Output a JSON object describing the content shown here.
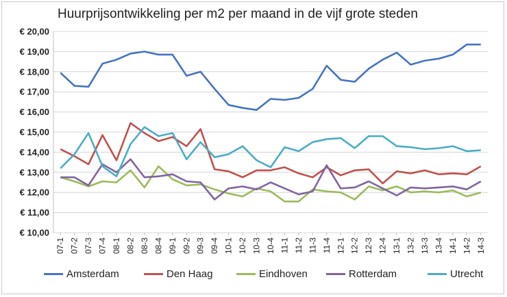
{
  "chart_data": {
    "type": "line",
    "title": "Huurprijsontwikkeling per m2 per maand in de vijf grote steden",
    "xlabel": "",
    "ylabel": "",
    "ylim": [
      10,
      20
    ],
    "yticks": [
      "€ 10,00",
      "€ 11,00",
      "€ 12,00",
      "€ 13,00",
      "€ 14,00",
      "€ 15,00",
      "€ 16,00",
      "€ 17,00",
      "€ 18,00",
      "€ 19,00",
      "€ 20,00"
    ],
    "grid": true,
    "legend_position": "bottom",
    "categories": [
      "07-1",
      "07-2",
      "07-3",
      "07-4",
      "08-1",
      "08-2",
      "08-3",
      "08-4",
      "09-1",
      "09-2",
      "09-3",
      "09-4",
      "10-1",
      "10-2",
      "10-3",
      "10-4",
      "11-1",
      "11-2",
      "11-3",
      "11-4",
      "12-1",
      "12-2",
      "12-3",
      "12-4",
      "13-1",
      "13-2",
      "13-3",
      "13-4",
      "14-1",
      "14-2",
      "14-3"
    ],
    "series": [
      {
        "name": "Amsterdam",
        "color": "#4472c4",
        "values": [
          17.95,
          17.3,
          17.25,
          18.4,
          18.6,
          18.9,
          19.0,
          18.85,
          18.85,
          17.8,
          18.0,
          17.15,
          16.35,
          16.2,
          16.1,
          16.65,
          16.6,
          16.7,
          17.15,
          18.3,
          17.6,
          17.5,
          18.15,
          18.6,
          18.95,
          18.35,
          18.55,
          18.65,
          18.85,
          19.35,
          19.35
        ]
      },
      {
        "name": "Den Haag",
        "color": "#c0504d",
        "values": [
          14.15,
          13.8,
          13.4,
          14.85,
          13.6,
          15.45,
          14.95,
          14.55,
          14.75,
          14.3,
          15.15,
          13.15,
          13.05,
          12.75,
          13.1,
          13.1,
          13.25,
          12.95,
          12.75,
          13.25,
          12.85,
          13.1,
          13.15,
          12.45,
          13.05,
          12.95,
          13.1,
          12.9,
          12.95,
          12.9,
          13.3
        ]
      },
      {
        "name": "Eindhoven",
        "color": "#9bbb59",
        "values": [
          12.75,
          12.55,
          12.3,
          12.55,
          12.5,
          13.1,
          12.25,
          13.3,
          12.65,
          12.35,
          12.4,
          12.15,
          11.95,
          11.8,
          12.2,
          12.05,
          11.55,
          11.55,
          12.15,
          12.05,
          12.0,
          11.65,
          12.3,
          12.1,
          12.3,
          12.0,
          12.05,
          12.0,
          12.1,
          11.8,
          12.0
        ]
      },
      {
        "name": "Rotterdam",
        "color": "#8064a2",
        "values": [
          12.75,
          12.75,
          12.35,
          13.4,
          13.0,
          13.65,
          12.75,
          12.8,
          12.9,
          12.55,
          12.5,
          11.65,
          12.2,
          12.3,
          12.15,
          12.5,
          12.2,
          11.9,
          12.05,
          13.35,
          12.2,
          12.25,
          12.55,
          12.2,
          11.85,
          12.25,
          12.2,
          12.25,
          12.3,
          12.15,
          12.55
        ]
      },
      {
        "name": "Utrecht",
        "color": "#4bacc6",
        "values": [
          13.2,
          13.9,
          14.95,
          13.3,
          12.8,
          14.4,
          15.25,
          14.8,
          14.95,
          13.65,
          14.5,
          13.75,
          13.9,
          14.3,
          13.6,
          13.25,
          14.25,
          14.05,
          14.5,
          14.65,
          14.7,
          14.2,
          14.8,
          14.8,
          14.3,
          14.25,
          14.15,
          14.2,
          14.3,
          14.05,
          14.1
        ]
      }
    ]
  }
}
